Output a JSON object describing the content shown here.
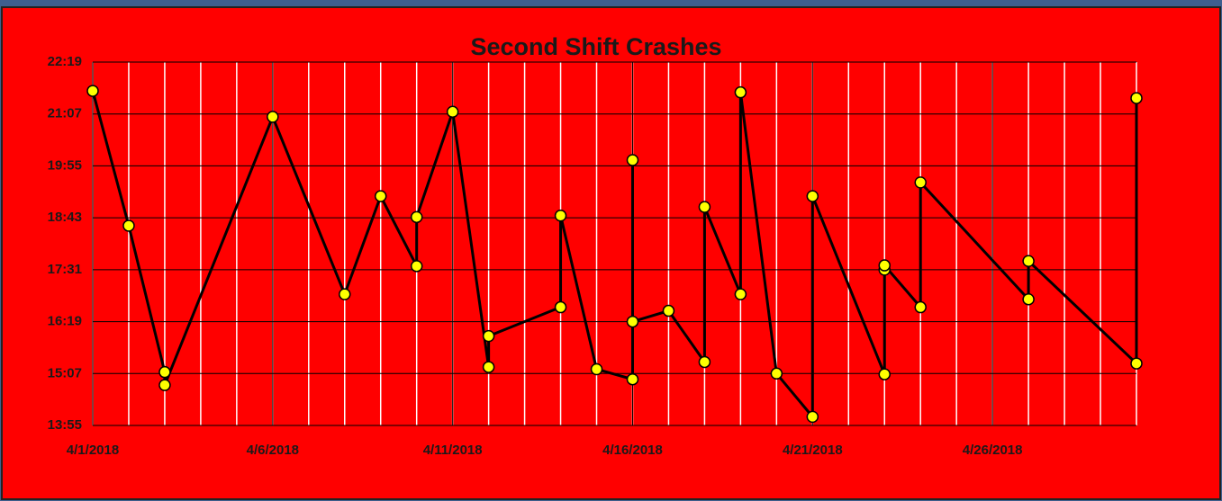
{
  "chart_data": {
    "type": "line",
    "title": "Second Shift Crashes",
    "x": [
      "2018-04-01",
      "2018-04-02",
      "2018-04-03",
      "2018-04-03",
      "2018-04-06",
      "2018-04-08",
      "2018-04-09",
      "2018-04-10",
      "2018-04-10",
      "2018-04-11",
      "2018-04-12",
      "2018-04-12",
      "2018-04-14",
      "2018-04-14",
      "2018-04-15",
      "2018-04-16",
      "2018-04-16",
      "2018-04-16",
      "2018-04-17",
      "2018-04-18",
      "2018-04-18",
      "2018-04-19",
      "2018-04-19",
      "2018-04-20",
      "2018-04-21",
      "2018-04-21",
      "2018-04-23",
      "2018-04-23",
      "2018-04-23",
      "2018-04-24",
      "2018-04-24",
      "2018-04-27",
      "2018-04-27",
      "2018-04-30",
      "2018-04-30"
    ],
    "series": [
      {
        "color": "#ffff00",
        "values": [
          1299,
          1112,
          909,
          891,
          1263,
          1017,
          1153,
          1056,
          1124,
          1270,
          916,
          959,
          999,
          1126,
          913,
          899,
          1203,
          979,
          994,
          923,
          1138,
          1017,
          1297,
          907,
          847,
          1153,
          906,
          1051,
          1057,
          999,
          1172,
          1010,
          1063,
          921,
          1289
        ]
      }
    ],
    "xlim": [
      "2018-04-01",
      "2018-04-30"
    ],
    "xticks": [
      {
        "value": "2018-04-01",
        "label": "4/1/2018"
      },
      {
        "value": "2018-04-06",
        "label": "4/6/2018"
      },
      {
        "value": "2018-04-11",
        "label": "4/11/2018"
      },
      {
        "value": "2018-04-16",
        "label": "4/16/2018"
      },
      {
        "value": "2018-04-21",
        "label": "4/21/2018"
      },
      {
        "value": "2018-04-26",
        "label": "4/26/2018"
      }
    ],
    "ylim": [
      835,
      1339
    ],
    "yticks": [
      {
        "value": 835,
        "label": "13:55"
      },
      {
        "value": 907,
        "label": "15:07"
      },
      {
        "value": 979,
        "label": "16:19"
      },
      {
        "value": 1051,
        "label": "17:31"
      },
      {
        "value": 1123,
        "label": "18:43"
      },
      {
        "value": 1195,
        "label": "19:55"
      },
      {
        "value": 1267,
        "label": "21:07"
      },
      {
        "value": 1339,
        "label": "22:19"
      }
    ],
    "grid": true,
    "minor_grid": true
  }
}
